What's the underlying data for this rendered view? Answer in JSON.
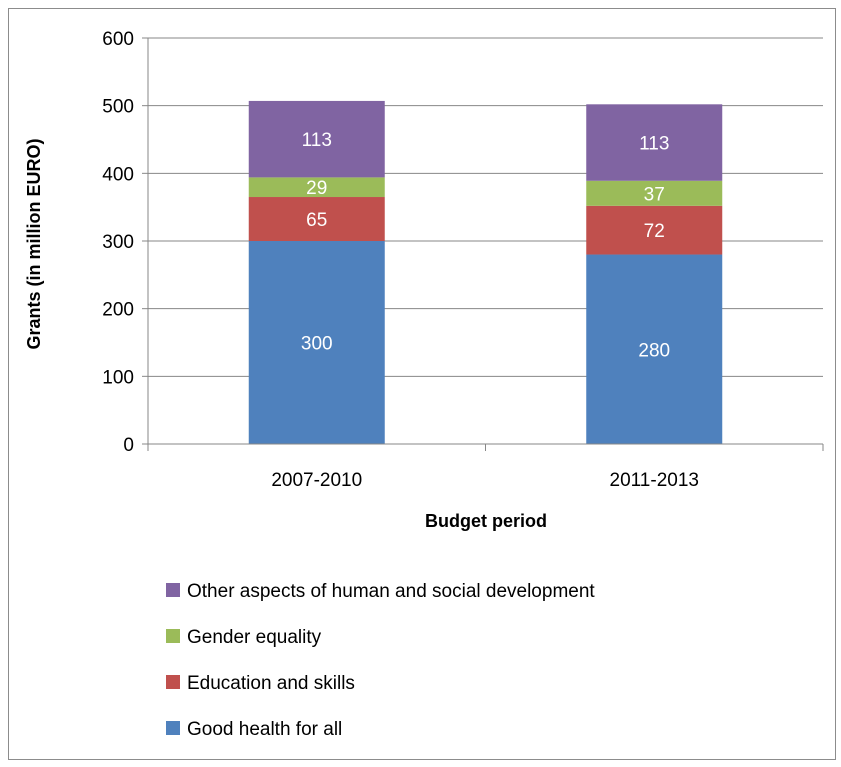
{
  "chart_data": {
    "type": "bar",
    "stacked": true,
    "categories": [
      "2007-2010",
      "2011-2013"
    ],
    "series": [
      {
        "name": "Good health for all",
        "values": [
          300,
          280
        ],
        "color": "#4F81BD"
      },
      {
        "name": "Education and skills",
        "values": [
          65,
          72
        ],
        "color": "#C0504D"
      },
      {
        "name": "Gender equality",
        "values": [
          29,
          37
        ],
        "color": "#9BBB59"
      },
      {
        "name": "Other aspects of human and social development",
        "values": [
          113,
          113
        ],
        "color": "#8064A2"
      }
    ],
    "title": "",
    "xlabel": "Budget period",
    "ylabel": "Grants (in million EURO)",
    "ylim": [
      0,
      600
    ],
    "yticks": [
      0,
      100,
      200,
      300,
      400,
      500,
      600
    ],
    "grid": true,
    "legend_position": "bottom"
  }
}
